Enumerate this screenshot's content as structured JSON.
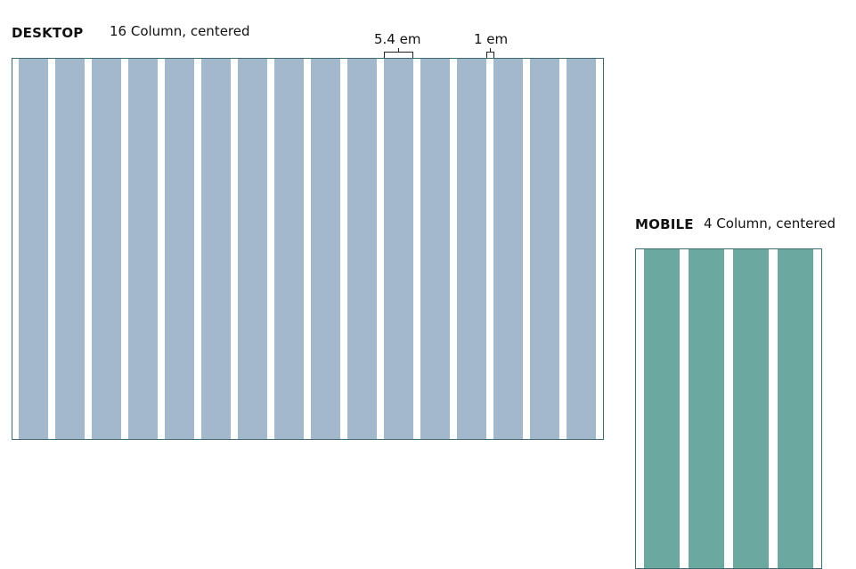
{
  "desktop": {
    "title": "DESKTOP",
    "subtitle": "16 Column, centered",
    "columns": 16,
    "column_color": "#a4b8cc",
    "column_width_label": "5.4 em",
    "gutter_label": "1 em"
  },
  "mobile": {
    "title": "MOBILE",
    "subtitle": "4 Column, centered",
    "columns": 4,
    "column_color": "#6ba89f"
  },
  "frame_border_color": "#3f6b72"
}
